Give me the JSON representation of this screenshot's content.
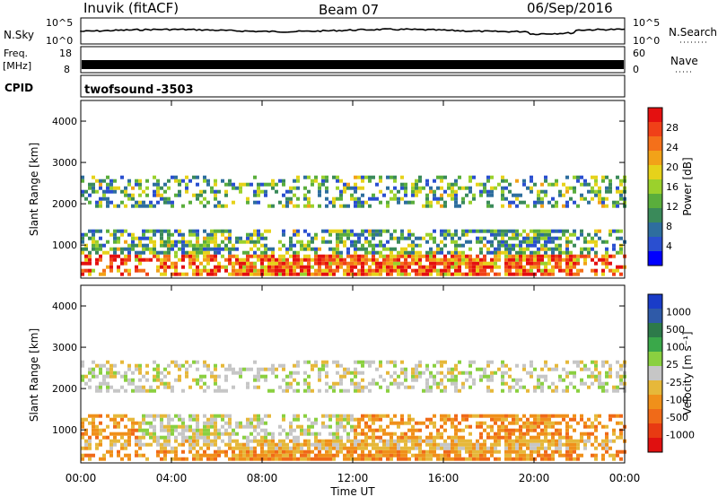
{
  "header": {
    "station": "Inuvik (fitACF)",
    "beam": "Beam 07",
    "date": "06/Sep/2016"
  },
  "strip_panels": {
    "nsky": {
      "label": "N.Sky",
      "ticks_left": [
        "10^5",
        "10^0"
      ]
    },
    "nsearch": {
      "label": "N.Search",
      "ticks_right": [
        "10^5",
        "10^0"
      ]
    },
    "freq": {
      "label_line1": "Freq.",
      "label_line2": "[MHz]",
      "ticks_left": [
        "18",
        "8"
      ]
    },
    "nave": {
      "label": "Nave",
      "ticks_right": [
        "60",
        "0"
      ]
    },
    "cpid": {
      "label": "CPID",
      "program": "twofsound",
      "id": "-3503"
    }
  },
  "colors": {
    "power_scale": [
      "#0000ff",
      "#2a4fd0",
      "#2e6e9e",
      "#3a8a5a",
      "#5aae3c",
      "#9bd12c",
      "#e6d21a",
      "#f2a218",
      "#f4701a",
      "#f04018",
      "#e41010"
    ],
    "velocity_scale": [
      "#1a3cc8",
      "#2f5aa8",
      "#2d7a4a",
      "#3aa84a",
      "#8ad040",
      "#c6c6c6",
      "#e6b83a",
      "#f0901a",
      "#f06a18",
      "#e83a12",
      "#e01010"
    ]
  },
  "chart_data": [
    {
      "type": "heatmap",
      "name": "power-panel",
      "ylabel": "Slant Range [km]",
      "yticks": [
        "4000",
        "3000",
        "2000",
        "1000"
      ],
      "ylim": [
        200,
        4500
      ],
      "colorbar_label": "Power [dB]",
      "colorbar_ticks": [
        "28",
        "24",
        "20",
        "16",
        "12",
        "8",
        "4"
      ],
      "bands": [
        {
          "range_km": [
            300,
            600
          ],
          "intensity": "high",
          "note": "strong near-range echoes 06:30-22:00"
        },
        {
          "range_km": [
            700,
            1300
          ],
          "intensity": "medium"
        },
        {
          "range_km": [
            1900,
            2600
          ],
          "intensity": "low"
        }
      ]
    },
    {
      "type": "heatmap",
      "name": "velocity-panel",
      "ylabel": "Slant Range [km]",
      "yticks": [
        "4000",
        "3000",
        "2000",
        "1000"
      ],
      "ylim": [
        200,
        4500
      ],
      "colorbar_label": "Velocity [m s⁻¹]",
      "colorbar_ticks": [
        "1000",
        "500",
        "100",
        "25",
        "-25",
        "-100",
        "-500",
        "-1000"
      ]
    }
  ],
  "xaxis": {
    "ticks": [
      "00:00",
      "04:00",
      "08:00",
      "12:00",
      "16:00",
      "20:00",
      "00:00"
    ],
    "label": "Time UT"
  }
}
